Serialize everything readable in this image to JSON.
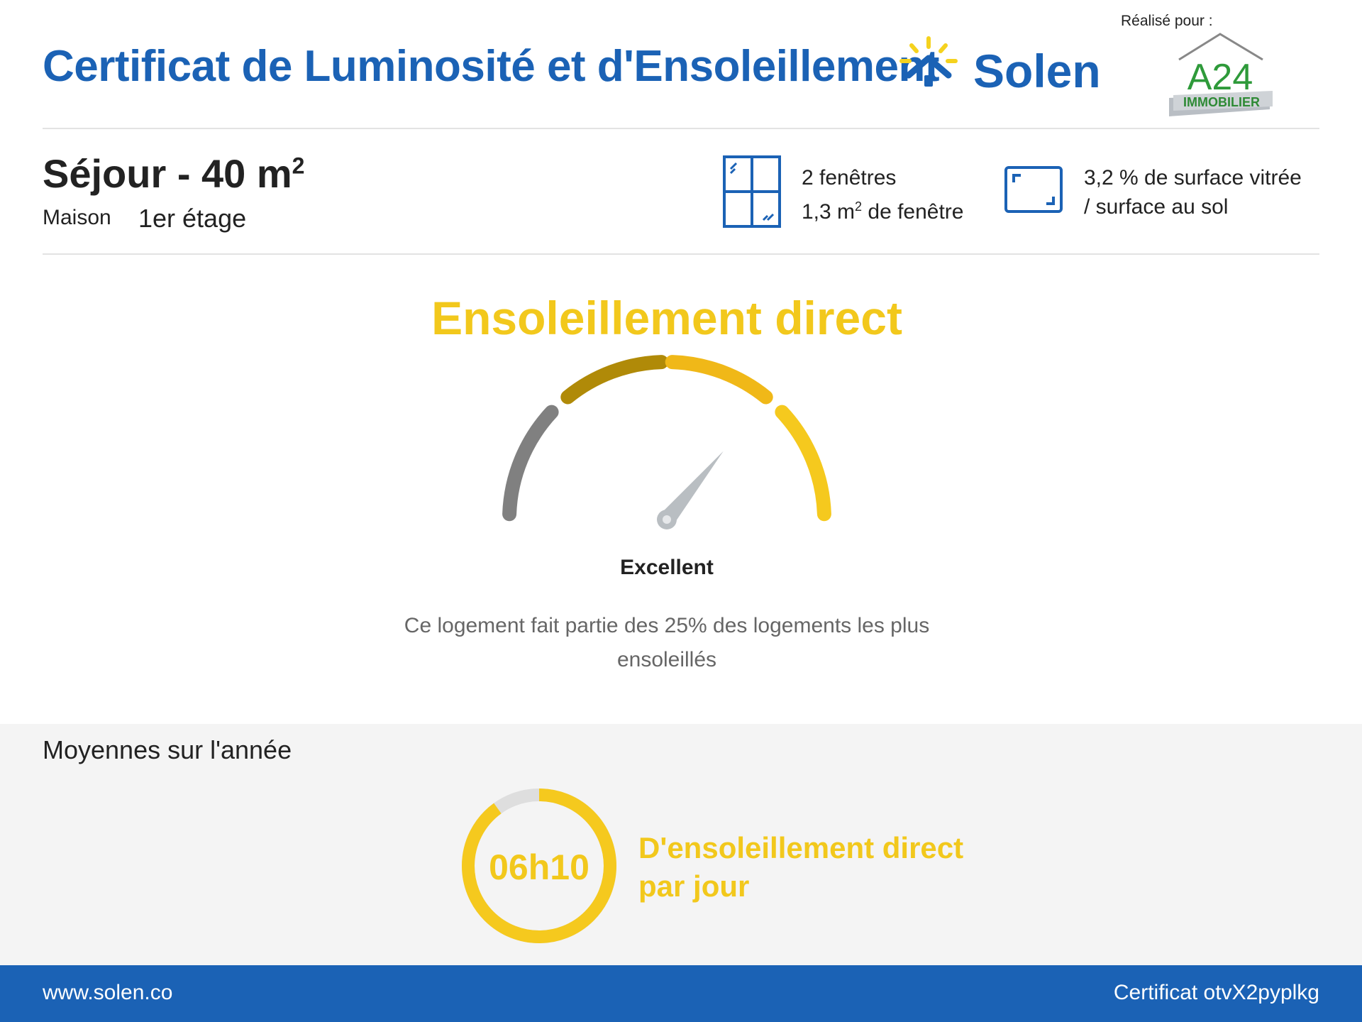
{
  "header": {
    "title": "Certificat de Luminosité et d'Ensoleillement",
    "brand": "Solen",
    "realise_pour": "Réalisé pour :",
    "client_logo_text": "A24",
    "client_logo_sub": "IMMOBILIER"
  },
  "room": {
    "name": "Séjour - 40 m",
    "area_exponent": "2",
    "type": "Maison",
    "floor": "1er étage"
  },
  "windows": {
    "count": "2 fenêtres",
    "area_prefix": "1,3 m",
    "area_exponent": "2",
    "area_suffix": " de fenêtre",
    "icon": "window-icon"
  },
  "glazing": {
    "line1": "3,2 % de surface vitrée",
    "line2": "/ surface au sol",
    "icon": "floor-area-icon"
  },
  "sunlight": {
    "title": "Ensoleillement direct",
    "rating": "Excellent",
    "description": "Ce logement fait partie des 25% des logements les plus ensoleillés",
    "gauge_level": 0.72
  },
  "averages": {
    "title": "Moyennes sur l'année",
    "hours_value": "06h10",
    "hours_fraction": 0.9,
    "caption_line1": "D'ensoleillement direct",
    "caption_line2": "par jour"
  },
  "footer": {
    "website": "www.solen.co",
    "certificate": "Certificat otvX2pyplkg"
  },
  "colors": {
    "brand_blue": "#1b62b5",
    "sun_yellow": "#f2c81c",
    "gauge_gray": "#808080",
    "gauge_olive": "#b08a08",
    "gauge_amber": "#f0b818",
    "gauge_yellow": "#f5c91e"
  }
}
